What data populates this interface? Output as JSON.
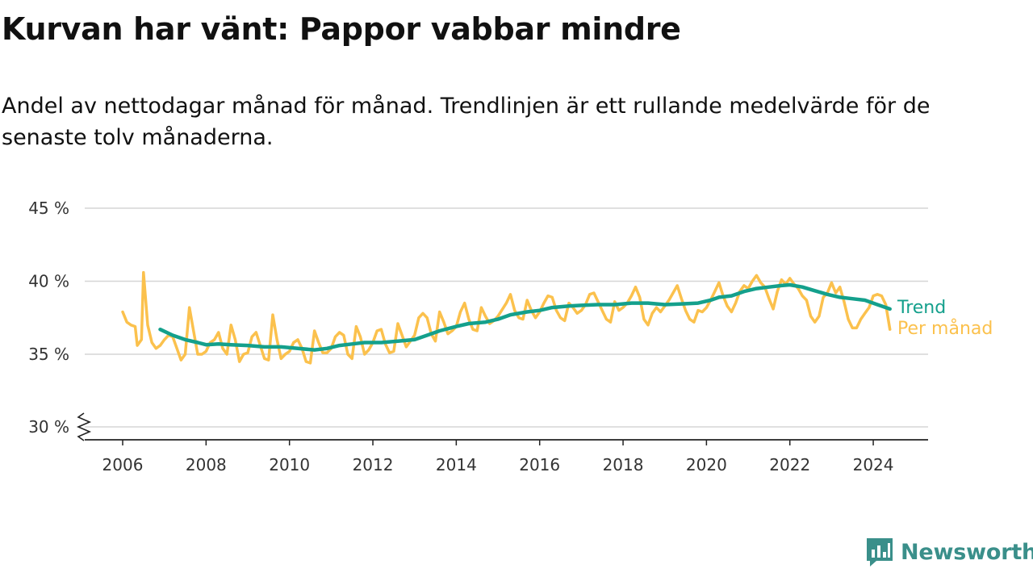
{
  "title": "Kurvan har vänt: Pappor vabbar mindre",
  "subtitle": "Andel av nettodagar månad för månad. Trendlinjen är ett rullande medelvärde för de senaste tolv månaderna.",
  "logo": {
    "text": "Newsworthy",
    "icon": "bar-chart-speech-bubble-icon"
  },
  "colors": {
    "trend": "#14a08c",
    "monthly": "#fbc14d",
    "grid": "#d6d6d6",
    "axis": "#222222",
    "logo": "#3a8f8a"
  },
  "chart_data": {
    "type": "line",
    "y_unit": "%",
    "y_ticks": [
      "30 %",
      "35 %",
      "40 %",
      "45 %"
    ],
    "y_tick_values": [
      30,
      35,
      40,
      45
    ],
    "x_ticks": [
      "2006",
      "2008",
      "2010",
      "2012",
      "2014",
      "2016",
      "2018",
      "2020",
      "2022",
      "2024"
    ],
    "x_tick_values": [
      2006,
      2008,
      2010,
      2012,
      2014,
      2016,
      2018,
      2020,
      2022,
      2024
    ],
    "xlim": [
      2005,
      2025.3
    ],
    "ylim": [
      30,
      45
    ],
    "axis_break": true,
    "grid": true,
    "legend": "direct labels at line ends",
    "series": [
      {
        "name": "Trend",
        "color": "#14a08c",
        "points": [
          [
            2006.9,
            36.7
          ],
          [
            2007.2,
            36.3
          ],
          [
            2007.5,
            36.0
          ],
          [
            2007.8,
            35.8
          ],
          [
            2008.0,
            35.65
          ],
          [
            2008.3,
            35.7
          ],
          [
            2008.6,
            35.65
          ],
          [
            2009.0,
            35.6
          ],
          [
            2009.4,
            35.5
          ],
          [
            2009.8,
            35.5
          ],
          [
            2010.2,
            35.4
          ],
          [
            2010.6,
            35.3
          ],
          [
            2010.9,
            35.4
          ],
          [
            2011.2,
            35.6
          ],
          [
            2011.5,
            35.7
          ],
          [
            2011.8,
            35.8
          ],
          [
            2012.2,
            35.8
          ],
          [
            2012.6,
            35.9
          ],
          [
            2013.0,
            36.0
          ],
          [
            2013.3,
            36.3
          ],
          [
            2013.6,
            36.6
          ],
          [
            2014.0,
            36.9
          ],
          [
            2014.3,
            37.1
          ],
          [
            2014.7,
            37.2
          ],
          [
            2015.0,
            37.4
          ],
          [
            2015.3,
            37.7
          ],
          [
            2015.7,
            37.9
          ],
          [
            2016.0,
            38.0
          ],
          [
            2016.3,
            38.2
          ],
          [
            2016.7,
            38.3
          ],
          [
            2017.0,
            38.35
          ],
          [
            2017.4,
            38.4
          ],
          [
            2017.8,
            38.4
          ],
          [
            2018.2,
            38.5
          ],
          [
            2018.6,
            38.5
          ],
          [
            2019.0,
            38.4
          ],
          [
            2019.4,
            38.45
          ],
          [
            2019.8,
            38.5
          ],
          [
            2020.1,
            38.7
          ],
          [
            2020.3,
            38.9
          ],
          [
            2020.6,
            39.0
          ],
          [
            2020.9,
            39.3
          ],
          [
            2021.2,
            39.5
          ],
          [
            2021.5,
            39.6
          ],
          [
            2021.8,
            39.7
          ],
          [
            2022.0,
            39.75
          ],
          [
            2022.3,
            39.6
          ],
          [
            2022.6,
            39.35
          ],
          [
            2022.9,
            39.1
          ],
          [
            2023.2,
            38.9
          ],
          [
            2023.5,
            38.8
          ],
          [
            2023.8,
            38.7
          ],
          [
            2024.1,
            38.4
          ],
          [
            2024.4,
            38.1
          ]
        ]
      },
      {
        "name": "Per månad",
        "color": "#fbc14d",
        "points": [
          [
            2006.0,
            37.9
          ],
          [
            2006.1,
            37.2
          ],
          [
            2006.2,
            37.0
          ],
          [
            2006.3,
            36.9
          ],
          [
            2006.35,
            35.6
          ],
          [
            2006.45,
            36.0
          ],
          [
            2006.5,
            40.6
          ],
          [
            2006.6,
            37.0
          ],
          [
            2006.7,
            35.8
          ],
          [
            2006.8,
            35.4
          ],
          [
            2006.9,
            35.6
          ],
          [
            2007.0,
            36.0
          ],
          [
            2007.1,
            36.3
          ],
          [
            2007.2,
            36.2
          ],
          [
            2007.3,
            35.4
          ],
          [
            2007.4,
            34.6
          ],
          [
            2007.5,
            35.0
          ],
          [
            2007.6,
            38.2
          ],
          [
            2007.7,
            36.6
          ],
          [
            2007.8,
            35.0
          ],
          [
            2007.9,
            35.0
          ],
          [
            2008.0,
            35.2
          ],
          [
            2008.1,
            35.8
          ],
          [
            2008.2,
            36.0
          ],
          [
            2008.3,
            36.5
          ],
          [
            2008.4,
            35.4
          ],
          [
            2008.5,
            35.0
          ],
          [
            2008.6,
            37.0
          ],
          [
            2008.7,
            36.0
          ],
          [
            2008.8,
            34.5
          ],
          [
            2008.9,
            35.0
          ],
          [
            2009.0,
            35.1
          ],
          [
            2009.1,
            36.2
          ],
          [
            2009.2,
            36.5
          ],
          [
            2009.3,
            35.6
          ],
          [
            2009.4,
            34.7
          ],
          [
            2009.5,
            34.6
          ],
          [
            2009.6,
            37.7
          ],
          [
            2009.7,
            36.0
          ],
          [
            2009.8,
            34.7
          ],
          [
            2009.9,
            35.0
          ],
          [
            2010.0,
            35.2
          ],
          [
            2010.1,
            35.8
          ],
          [
            2010.2,
            36.0
          ],
          [
            2010.3,
            35.4
          ],
          [
            2010.4,
            34.5
          ],
          [
            2010.5,
            34.4
          ],
          [
            2010.6,
            36.6
          ],
          [
            2010.7,
            35.8
          ],
          [
            2010.8,
            35.1
          ],
          [
            2010.9,
            35.1
          ],
          [
            2011.0,
            35.4
          ],
          [
            2011.1,
            36.2
          ],
          [
            2011.2,
            36.5
          ],
          [
            2011.3,
            36.3
          ],
          [
            2011.4,
            35.0
          ],
          [
            2011.5,
            34.7
          ],
          [
            2011.6,
            36.9
          ],
          [
            2011.7,
            36.2
          ],
          [
            2011.8,
            35.0
          ],
          [
            2011.9,
            35.3
          ],
          [
            2012.0,
            35.8
          ],
          [
            2012.1,
            36.6
          ],
          [
            2012.2,
            36.7
          ],
          [
            2012.3,
            35.7
          ],
          [
            2012.4,
            35.1
          ],
          [
            2012.5,
            35.2
          ],
          [
            2012.6,
            37.1
          ],
          [
            2012.7,
            36.3
          ],
          [
            2012.8,
            35.5
          ],
          [
            2012.9,
            35.9
          ],
          [
            2013.0,
            36.3
          ],
          [
            2013.1,
            37.5
          ],
          [
            2013.2,
            37.8
          ],
          [
            2013.3,
            37.5
          ],
          [
            2013.4,
            36.4
          ],
          [
            2013.5,
            35.9
          ],
          [
            2013.6,
            37.9
          ],
          [
            2013.7,
            37.2
          ],
          [
            2013.8,
            36.4
          ],
          [
            2013.9,
            36.6
          ],
          [
            2014.0,
            36.9
          ],
          [
            2014.1,
            37.9
          ],
          [
            2014.2,
            38.5
          ],
          [
            2014.3,
            37.4
          ],
          [
            2014.4,
            36.7
          ],
          [
            2014.5,
            36.6
          ],
          [
            2014.6,
            38.2
          ],
          [
            2014.7,
            37.6
          ],
          [
            2014.8,
            37.1
          ],
          [
            2014.9,
            37.3
          ],
          [
            2015.0,
            37.6
          ],
          [
            2015.2,
            38.5
          ],
          [
            2015.3,
            39.1
          ],
          [
            2015.4,
            38.0
          ],
          [
            2015.5,
            37.5
          ],
          [
            2015.6,
            37.4
          ],
          [
            2015.7,
            38.7
          ],
          [
            2015.8,
            38.0
          ],
          [
            2015.9,
            37.5
          ],
          [
            2016.0,
            37.9
          ],
          [
            2016.1,
            38.5
          ],
          [
            2016.2,
            39.0
          ],
          [
            2016.3,
            38.9
          ],
          [
            2016.4,
            38.0
          ],
          [
            2016.5,
            37.5
          ],
          [
            2016.6,
            37.3
          ],
          [
            2016.7,
            38.5
          ],
          [
            2016.8,
            38.2
          ],
          [
            2016.9,
            37.8
          ],
          [
            2017.0,
            38.0
          ],
          [
            2017.1,
            38.4
          ],
          [
            2017.2,
            39.1
          ],
          [
            2017.3,
            39.2
          ],
          [
            2017.4,
            38.6
          ],
          [
            2017.5,
            38.0
          ],
          [
            2017.6,
            37.4
          ],
          [
            2017.7,
            37.2
          ],
          [
            2017.8,
            38.6
          ],
          [
            2017.9,
            38.0
          ],
          [
            2018.0,
            38.2
          ],
          [
            2018.1,
            38.5
          ],
          [
            2018.2,
            39.0
          ],
          [
            2018.3,
            39.6
          ],
          [
            2018.4,
            38.9
          ],
          [
            2018.5,
            37.4
          ],
          [
            2018.6,
            37.0
          ],
          [
            2018.7,
            37.8
          ],
          [
            2018.8,
            38.2
          ],
          [
            2018.9,
            37.9
          ],
          [
            2019.0,
            38.3
          ],
          [
            2019.1,
            38.7
          ],
          [
            2019.2,
            39.2
          ],
          [
            2019.3,
            39.7
          ],
          [
            2019.4,
            38.8
          ],
          [
            2019.5,
            38.0
          ],
          [
            2019.6,
            37.4
          ],
          [
            2019.7,
            37.2
          ],
          [
            2019.8,
            38.0
          ],
          [
            2019.9,
            37.9
          ],
          [
            2020.0,
            38.2
          ],
          [
            2020.1,
            38.7
          ],
          [
            2020.2,
            39.3
          ],
          [
            2020.3,
            39.9
          ],
          [
            2020.4,
            39.0
          ],
          [
            2020.5,
            38.3
          ],
          [
            2020.6,
            37.9
          ],
          [
            2020.7,
            38.5
          ],
          [
            2020.8,
            39.3
          ],
          [
            2020.9,
            39.7
          ],
          [
            2021.0,
            39.5
          ],
          [
            2021.1,
            40.0
          ],
          [
            2021.2,
            40.4
          ],
          [
            2021.3,
            39.9
          ],
          [
            2021.4,
            39.6
          ],
          [
            2021.5,
            38.8
          ],
          [
            2021.6,
            38.1
          ],
          [
            2021.7,
            39.3
          ],
          [
            2021.8,
            40.1
          ],
          [
            2021.9,
            39.8
          ],
          [
            2022.0,
            40.2
          ],
          [
            2022.1,
            39.8
          ],
          [
            2022.2,
            39.5
          ],
          [
            2022.3,
            39.0
          ],
          [
            2022.4,
            38.7
          ],
          [
            2022.5,
            37.6
          ],
          [
            2022.6,
            37.2
          ],
          [
            2022.7,
            37.6
          ],
          [
            2022.8,
            38.9
          ],
          [
            2022.9,
            39.2
          ],
          [
            2023.0,
            39.9
          ],
          [
            2023.1,
            39.2
          ],
          [
            2023.2,
            39.6
          ],
          [
            2023.3,
            38.6
          ],
          [
            2023.4,
            37.4
          ],
          [
            2023.5,
            36.8
          ],
          [
            2023.6,
            36.8
          ],
          [
            2023.7,
            37.4
          ],
          [
            2023.8,
            37.8
          ],
          [
            2023.9,
            38.2
          ],
          [
            2024.0,
            39.0
          ],
          [
            2024.1,
            39.1
          ],
          [
            2024.2,
            39.0
          ],
          [
            2024.3,
            38.4
          ],
          [
            2024.4,
            36.7
          ]
        ]
      }
    ]
  }
}
